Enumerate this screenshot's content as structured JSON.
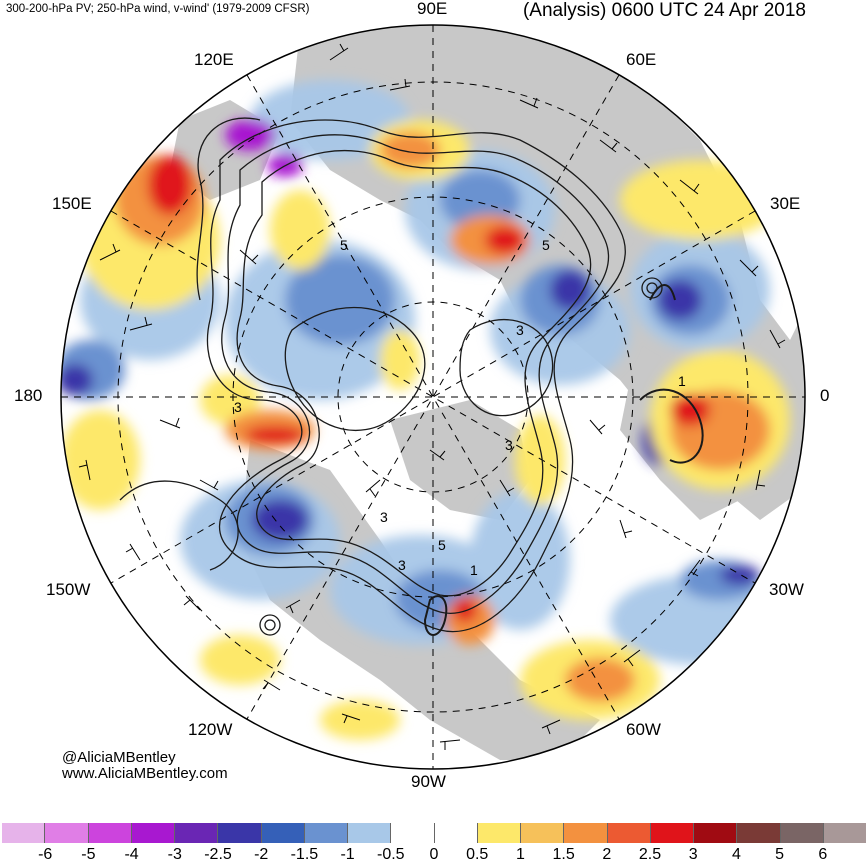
{
  "header": {
    "left": "300-200-hPa PV; 250-hPa wind, v-wind' (1979-2009 CFSR)",
    "right": "(Analysis) 0600 UTC 24 Apr 2018"
  },
  "map": {
    "projection": "north-polar-stereographic",
    "longitude_labels": {
      "lon_90E": "90E",
      "lon_60E": "60E",
      "lon_30E": "30E",
      "lon_0": "0",
      "lon_30W": "30W",
      "lon_60W": "60W",
      "lon_90W": "90W",
      "lon_120W": "120W",
      "lon_150W": "150W",
      "lon_180": "180",
      "lon_150E": "150E",
      "lon_120E": "120E"
    },
    "contour_labels": [
      "3",
      "3",
      "5",
      "5",
      "3",
      "1",
      "1",
      "3",
      "5",
      "3"
    ]
  },
  "credits": {
    "handle": "@AliciaMBentley",
    "site": "www.AliciaMBentley.com"
  },
  "colorbar": {
    "ticks": [
      "-6",
      "-5",
      "-4",
      "-3",
      "-2.5",
      "-2",
      "-1.5",
      "-1",
      "-0.5",
      "0",
      "0.5",
      "1",
      "1.5",
      "2",
      "2.5",
      "3",
      "4",
      "5",
      "6"
    ],
    "colors": [
      "#e6b3ea",
      "#e07ee6",
      "#cc44dd",
      "#a818d0",
      "#6a26b4",
      "#3a36a8",
      "#3560b8",
      "#6a92d0",
      "#a8c8e8",
      "#ffffff",
      "#ffffff",
      "#fde86a",
      "#f6c15a",
      "#f3913f",
      "#ec5a32",
      "#e0141a",
      "#a00b12",
      "#7a3a36",
      "#7a6565",
      "#a89898"
    ]
  }
}
